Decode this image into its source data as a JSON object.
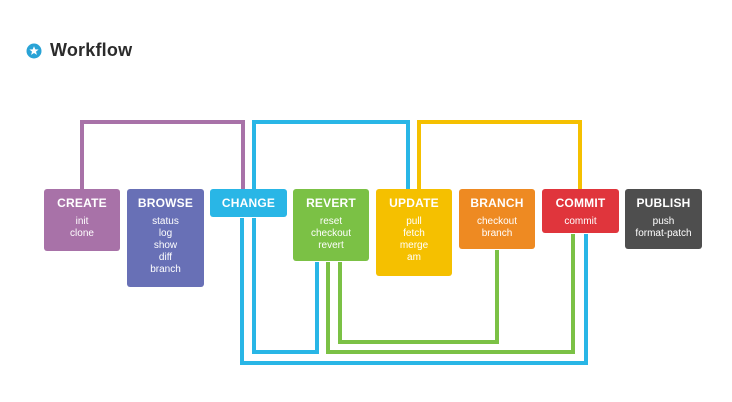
{
  "header": {
    "title": "Workflow",
    "icon": "star-icon",
    "icon_color": "#29a3d6"
  },
  "stages": [
    {
      "id": "create",
      "title": "CREATE",
      "color": "#a872a8",
      "commands": [
        "init",
        "clone"
      ]
    },
    {
      "id": "browse",
      "title": "BROWSE",
      "color": "#6870b6",
      "commands": [
        "status",
        "log",
        "show",
        "diff",
        "branch"
      ]
    },
    {
      "id": "change",
      "title": "CHANGE",
      "color": "#29b6e6",
      "commands": []
    },
    {
      "id": "revert",
      "title": "REVERT",
      "color": "#7bc145",
      "commands": [
        "reset",
        "checkout",
        "revert"
      ]
    },
    {
      "id": "update",
      "title": "UPDATE",
      "color": "#f5c000",
      "commands": [
        "pull",
        "fetch",
        "merge",
        "am"
      ]
    },
    {
      "id": "branch",
      "title": "BRANCH",
      "color": "#ee8a22",
      "commands": [
        "checkout",
        "branch"
      ]
    },
    {
      "id": "commit",
      "title": "COMMIT",
      "color": "#e0353c",
      "commands": [
        "commit"
      ]
    },
    {
      "id": "publish",
      "title": "PUBLISH",
      "color": "#4e4e4e",
      "commands": [
        "push",
        "format-patch"
      ]
    }
  ]
}
